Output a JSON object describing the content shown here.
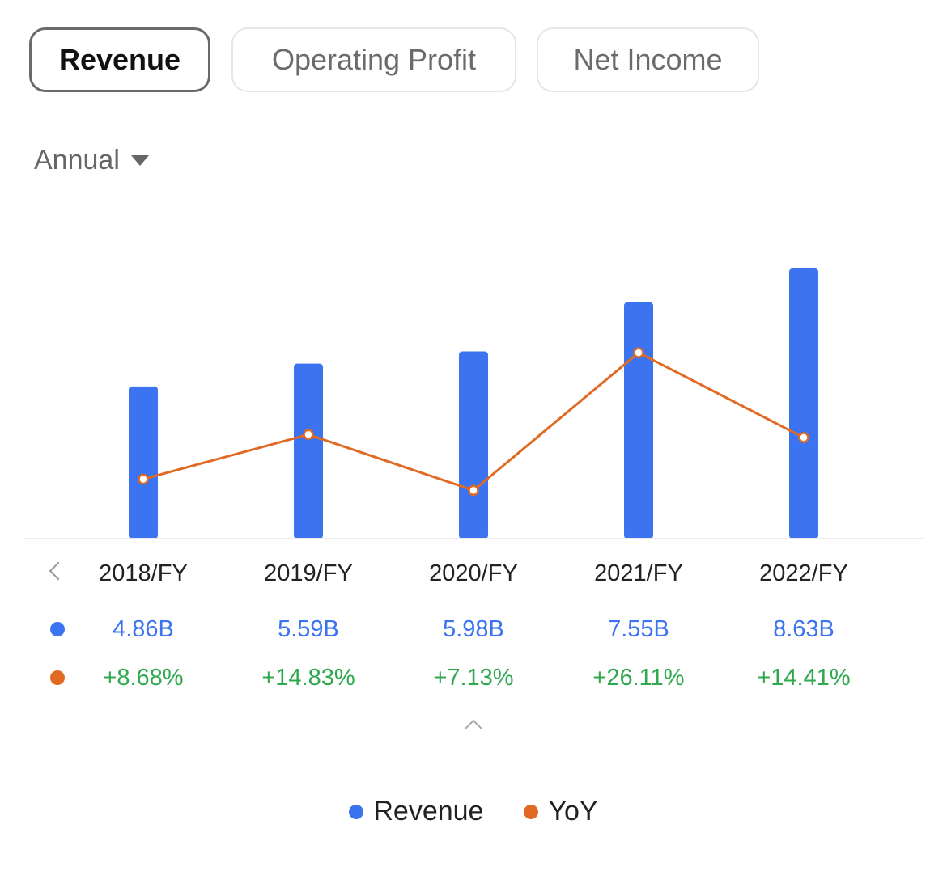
{
  "tabs": [
    {
      "label": "Revenue",
      "active": true
    },
    {
      "label": "Operating Profit",
      "active": false
    },
    {
      "label": "Net Income",
      "active": false
    }
  ],
  "period": {
    "label": "Annual"
  },
  "colors": {
    "revenue": "#3b73f1",
    "yoy": "#e06a24",
    "positive": "#2fa84f"
  },
  "chart_data": {
    "type": "bar",
    "categories": [
      "2018/FY",
      "2019/FY",
      "2020/FY",
      "2021/FY",
      "2022/FY"
    ],
    "series": [
      {
        "name": "Revenue",
        "type": "bar",
        "values": [
          4.86,
          5.59,
          5.98,
          7.55,
          8.63
        ],
        "labels": [
          "4.86B",
          "5.59B",
          "5.98B",
          "7.55B",
          "8.63B"
        ]
      },
      {
        "name": "YoY",
        "type": "line",
        "values": [
          8.68,
          14.83,
          7.13,
          26.11,
          14.41
        ],
        "labels": [
          "+8.68%",
          "+14.83%",
          "+7.13%",
          "+26.11%",
          "+14.41%"
        ]
      }
    ],
    "legend": [
      "Revenue",
      "YoY"
    ],
    "legend_position": "bottom",
    "grid": false
  }
}
